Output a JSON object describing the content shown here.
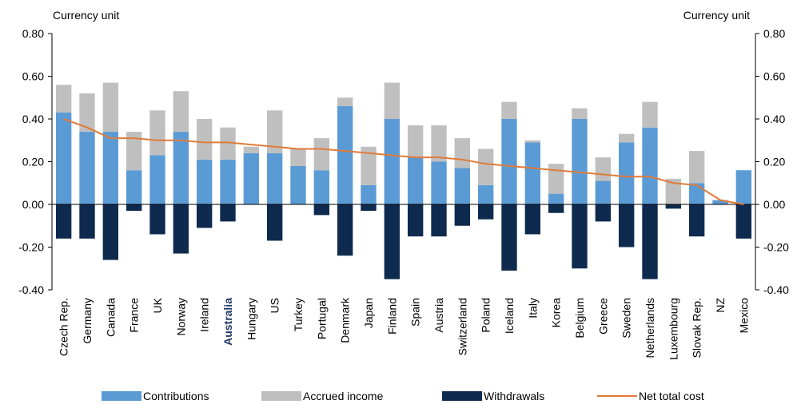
{
  "chart_data": {
    "type": "bar",
    "y_label": "Currency unit",
    "y2_label": "Currency unit",
    "categories": [
      "Czech Rep.",
      "Germany",
      "Canada",
      "France",
      "UK",
      "Norway",
      "Ireland",
      "Australia",
      "Hungary",
      "US",
      "Turkey",
      "Portugal",
      "Denmark",
      "Japan",
      "Finland",
      "Spain",
      "Austria",
      "Switzerland",
      "Poland",
      "Iceland",
      "Italy",
      "Korea",
      "Belgium",
      "Greece",
      "Sweden",
      "Netherlands",
      "Luxembourg",
      "Slovak Rep.",
      "NZ",
      "Mexico"
    ],
    "series": [
      {
        "name": "Contributions",
        "color": "#5b9bd5",
        "values": [
          0.43,
          0.34,
          0.34,
          0.16,
          0.23,
          0.34,
          0.21,
          0.21,
          0.24,
          0.24,
          0.18,
          0.16,
          0.46,
          0.09,
          0.4,
          0.22,
          0.2,
          0.17,
          0.09,
          0.4,
          0.29,
          0.05,
          0.4,
          0.11,
          0.29,
          0.36,
          0,
          0.1,
          0.02,
          0.16
        ]
      },
      {
        "name": "Accrued income",
        "color": "#bfbfbf",
        "values": [
          0.13,
          0.18,
          0.23,
          0.18,
          0.21,
          0.19,
          0.19,
          0.15,
          0.03,
          0.2,
          0.08,
          0.15,
          0.04,
          0.18,
          0.17,
          0.15,
          0.17,
          0.14,
          0.17,
          0.08,
          0.01,
          0.14,
          0.05,
          0.11,
          0.04,
          0.12,
          0.12,
          0.15,
          0,
          0
        ]
      },
      {
        "name": "Withdrawals",
        "color": "#0e2a4e",
        "values": [
          -0.16,
          -0.16,
          -0.26,
          -0.03,
          -0.14,
          -0.23,
          -0.11,
          -0.08,
          0,
          -0.17,
          0,
          -0.05,
          -0.24,
          -0.03,
          -0.35,
          -0.15,
          -0.15,
          -0.1,
          -0.07,
          -0.31,
          -0.14,
          -0.04,
          -0.3,
          -0.08,
          -0.2,
          -0.35,
          -0.02,
          -0.15,
          0,
          -0.16
        ]
      },
      {
        "name": "Net total cost",
        "color": "#e07b39",
        "line": true,
        "values": [
          0.4,
          0.36,
          0.31,
          0.31,
          0.3,
          0.3,
          0.29,
          0.29,
          0.28,
          0.27,
          0.26,
          0.26,
          0.25,
          0.24,
          0.23,
          0.22,
          0.22,
          0.21,
          0.19,
          0.18,
          0.17,
          0.16,
          0.15,
          0.14,
          0.13,
          0.13,
          0.1,
          0.09,
          0.02,
          0.0
        ]
      }
    ],
    "highlight_index": 7,
    "highlight_color": "#1f3864",
    "ylim": [
      -0.4,
      0.8
    ],
    "yticks": [
      {
        "value": -0.4,
        "label": "-0.40"
      },
      {
        "value": -0.2,
        "label": "-0.20"
      },
      {
        "value": 0,
        "label": "0.00"
      },
      {
        "value": 0.2,
        "label": "0.20"
      },
      {
        "value": 0.4,
        "label": "0.40"
      },
      {
        "value": 0.6,
        "label": "0.60"
      },
      {
        "value": 0.8,
        "label": "0.80"
      }
    ],
    "y2lim": [
      -0.4,
      0.8
    ],
    "y2ticks": [
      {
        "value": -0.4,
        "label": "-0.40"
      },
      {
        "value": -0.2,
        "label": "-0.20"
      },
      {
        "value": 0,
        "label": "0.00"
      },
      {
        "value": 0.2,
        "label": "0.20"
      },
      {
        "value": 0.4,
        "label": "0.40"
      },
      {
        "value": 0.6,
        "label": "0.60"
      },
      {
        "value": 0.8,
        "label": "0.80"
      }
    ],
    "grid": false
  }
}
